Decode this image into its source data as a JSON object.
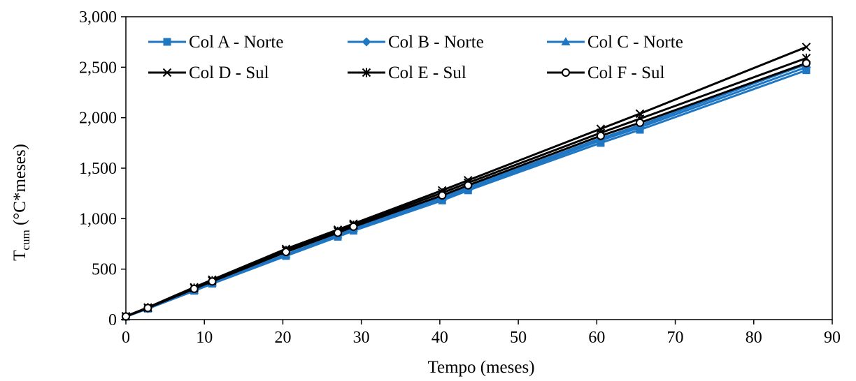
{
  "chart_data": {
    "type": "line",
    "title": "",
    "xlabel": "Tempo (meses)",
    "ylabel_main": "T",
    "ylabel_sub": "cum",
    "ylabel_rest": " (°C*meses)",
    "xlim": [
      0,
      90
    ],
    "ylim": [
      0,
      3000
    ],
    "xticks": [
      0,
      10,
      20,
      30,
      40,
      50,
      60,
      70,
      80,
      90
    ],
    "xtick_labels": [
      "0",
      "10",
      "20",
      "30",
      "40",
      "50",
      "60",
      "70",
      "80",
      "90"
    ],
    "yticks": [
      0,
      500,
      1000,
      1500,
      2000,
      2500,
      3000
    ],
    "ytick_labels": [
      "0",
      "500",
      "1,000",
      "1,500",
      "2,000",
      "2,500",
      "3,000"
    ],
    "grid": false,
    "legend_position": "top-left",
    "x": [
      0,
      2.8,
      8.7,
      11,
      20.4,
      27,
      29,
      40.3,
      43.6,
      60.5,
      65.5,
      86.7
    ],
    "series": [
      {
        "name": "Col A - Norte",
        "color": "#1F77C4",
        "marker": "square",
        "values": [
          28,
          108,
          285,
          355,
          630,
          820,
          880,
          1180,
          1280,
          1750,
          1880,
          2470
        ]
      },
      {
        "name": "Col B - Norte",
        "color": "#1F77C4",
        "marker": "diamond",
        "values": [
          30,
          110,
          290,
          360,
          640,
          830,
          895,
          1195,
          1295,
          1775,
          1905,
          2500
        ]
      },
      {
        "name": "Col C - Norte",
        "color": "#1F77C4",
        "marker": "triangle",
        "values": [
          30,
          112,
          292,
          364,
          645,
          840,
          905,
          1210,
          1310,
          1795,
          1925,
          2530
        ]
      },
      {
        "name": "Col D - Sul",
        "color": "#000000",
        "marker": "x",
        "values": [
          33,
          120,
          320,
          395,
          700,
          890,
          950,
          1280,
          1380,
          1890,
          2040,
          2700
        ]
      },
      {
        "name": "Col E - Sul",
        "color": "#000000",
        "marker": "star",
        "values": [
          32,
          118,
          312,
          385,
          685,
          875,
          935,
          1255,
          1355,
          1850,
          1990,
          2590
        ]
      },
      {
        "name": "Col F - Sul",
        "color": "#000000",
        "marker": "circle",
        "values": [
          31,
          115,
          305,
          378,
          670,
          860,
          920,
          1230,
          1330,
          1820,
          1950,
          2540
        ]
      }
    ]
  }
}
